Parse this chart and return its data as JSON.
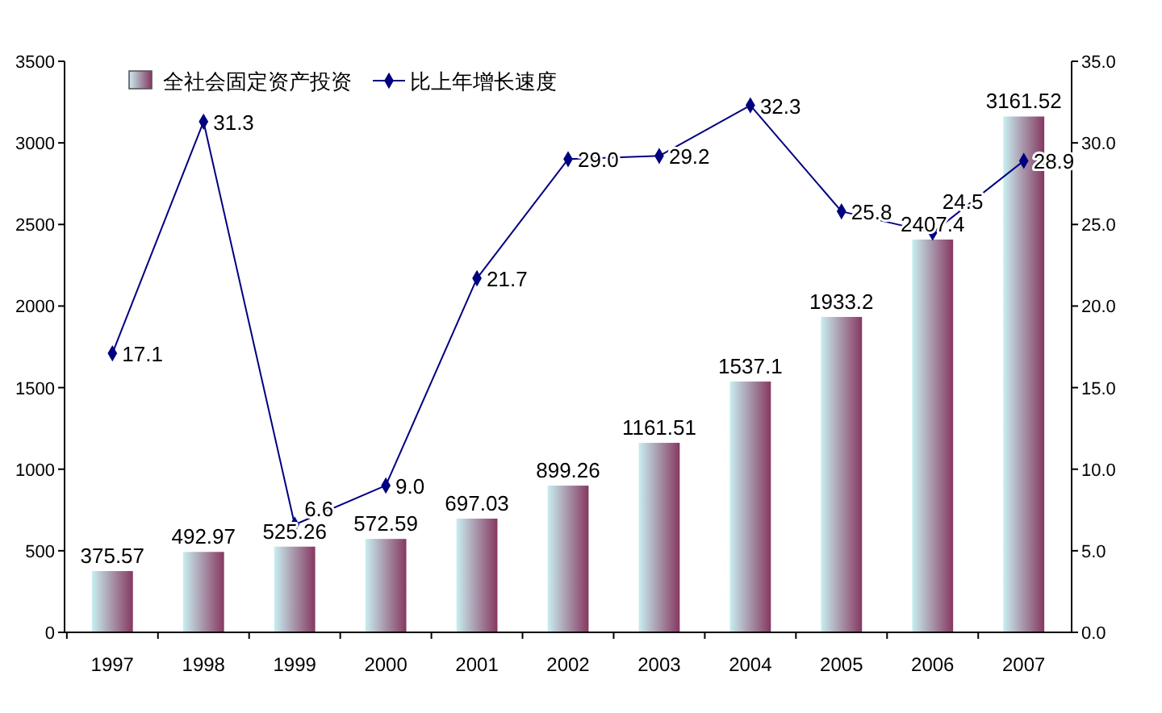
{
  "chart_data": {
    "type": "bar",
    "categories": [
      "1997",
      "1998",
      "1999",
      "2000",
      "2001",
      "2002",
      "2003",
      "2004",
      "2005",
      "2006",
      "2007"
    ],
    "series": [
      {
        "name": "全社会固定资产投资",
        "color": "#c8eef0",
        "values": [
          375.57,
          492.97,
          525.26,
          572.59,
          697.03,
          899.26,
          1161.51,
          1537.1,
          1933.2,
          2407.4,
          3161.52
        ],
        "value_labels": [
          "375.57",
          "492.97",
          "525.26",
          "572.59",
          "697.03",
          "899.26",
          "1161.51",
          "1537.1",
          "1933.2",
          "2407.4",
          "3161.52"
        ]
      },
      {
        "name": "比上年增长速度",
        "type": "line",
        "axis": "y2",
        "color": "#000080",
        "marker": "diamond",
        "values": [
          17.1,
          31.3,
          6.6,
          9.0,
          21.7,
          29.0,
          29.2,
          32.3,
          25.8,
          24.5,
          28.9
        ],
        "value_labels": [
          "17.1",
          "31.3",
          "6.6",
          "9.0",
          "21.7",
          "29.0",
          "29.2",
          "32.3",
          "25.8",
          "24.5",
          "28.9"
        ]
      }
    ],
    "ylim": [
      0,
      3500
    ],
    "yticks": [
      0,
      500,
      1000,
      1500,
      2000,
      2500,
      3000,
      3500
    ],
    "y2lim": [
      0,
      35
    ],
    "y2ticks": [
      {
        "value": 0,
        "label": "0.0"
      },
      {
        "value": 5,
        "label": "5.0"
      },
      {
        "value": 10,
        "label": "10.0"
      },
      {
        "value": 15,
        "label": "15.0"
      },
      {
        "value": 20,
        "label": "20.0"
      },
      {
        "value": 25,
        "label": "25.0"
      },
      {
        "value": 30,
        "label": "30.0"
      },
      {
        "value": 35,
        "label": "35.0"
      }
    ],
    "legend": "top left",
    "grid": false
  }
}
